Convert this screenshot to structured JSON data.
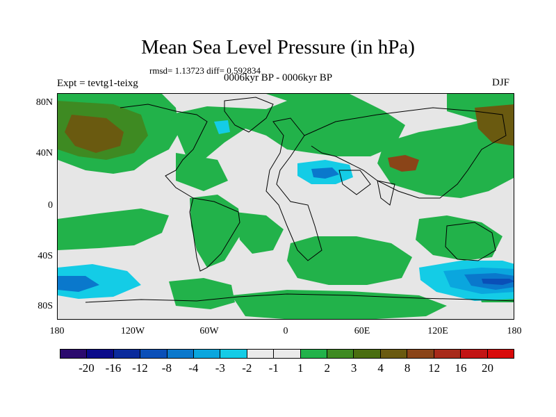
{
  "title": "Mean Sea Level Pressure (in hPa)",
  "stats": "rmsd= 1.13723 diff= 0.592834",
  "experiment": "Expt = tevtg1-teixg",
  "period": "0006kyr BP - 0006kyr BP",
  "season": "DJF",
  "lat_ticks": [
    "80N",
    "40N",
    "0",
    "40S",
    "80S"
  ],
  "lon_ticks": [
    "180",
    "120W",
    "60W",
    "0",
    "60E",
    "120E",
    "180"
  ],
  "colorbar": {
    "colors": [
      "#2b0a6e",
      "#0a0a8a",
      "#0a2a9c",
      "#0a4fb8",
      "#0a78cc",
      "#0aa6de",
      "#14cce6",
      "#eaeaea",
      "#eaeaea",
      "#22b24a",
      "#3e8a22",
      "#4a6e10",
      "#6a5a10",
      "#8a4418",
      "#a82a1a",
      "#c21414",
      "#d80a0a"
    ],
    "labels": [
      "-20",
      "-16",
      "-12",
      "-8",
      "-4",
      "-3",
      "-2",
      "-1",
      "1",
      "2",
      "3",
      "4",
      "8",
      "12",
      "16",
      "20"
    ]
  },
  "map_colors": {
    "background": "#e6e6e6",
    "green": "#22b24a",
    "dark_green": "#3e8a22",
    "brown": "#6a5a10",
    "rust": "#8a4418",
    "cyan": "#14cce6",
    "light_blue": "#0aa6de",
    "blue": "#0a78cc",
    "deep_blue": "#0a4fb8",
    "coast": "#000000"
  }
}
